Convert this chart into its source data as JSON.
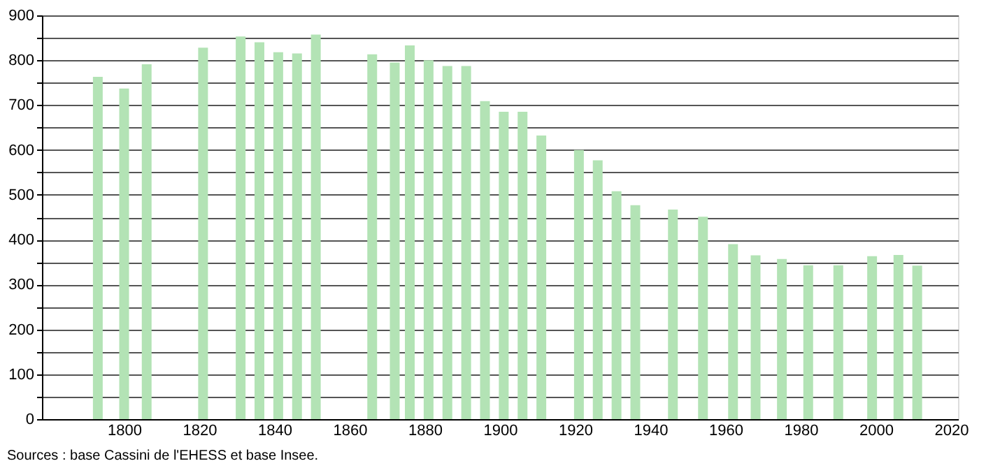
{
  "chart_data": {
    "type": "bar",
    "x": [
      1793,
      1800,
      1806,
      1821,
      1831,
      1836,
      1841,
      1846,
      1851,
      1866,
      1872,
      1876,
      1881,
      1886,
      1891,
      1896,
      1901,
      1906,
      1911,
      1921,
      1926,
      1931,
      1936,
      1946,
      1954,
      1962,
      1968,
      1975,
      1982,
      1990,
      1999,
      2006,
      2011
    ],
    "values": [
      763,
      737,
      791,
      828,
      853,
      840,
      818,
      815,
      857,
      813,
      795,
      833,
      800,
      787,
      787,
      709,
      685,
      685,
      632,
      600,
      577,
      508,
      477,
      467,
      451,
      390,
      365,
      357,
      343,
      343,
      363,
      366,
      342
    ],
    "color": "#b3e3b5",
    "xlim": [
      1780,
      2020
    ],
    "xticks": [
      1800,
      1820,
      1840,
      1860,
      1880,
      1900,
      1920,
      1940,
      1960,
      1980,
      2000,
      2020
    ],
    "ylim": [
      0,
      900
    ],
    "yticks": [
      0,
      {
        "value": 50,
        "label": null
      },
      100,
      {
        "value": 150,
        "label": null
      },
      200,
      {
        "value": 250,
        "label": null
      },
      300,
      {
        "value": 350,
        "label": null
      },
      400,
      {
        "value": 450,
        "label": null
      },
      500,
      {
        "value": 550,
        "label": null
      },
      600,
      {
        "value": 650,
        "label": null
      },
      700,
      {
        "value": 750,
        "label": null
      },
      800,
      {
        "value": 850,
        "label": null
      },
      900
    ],
    "grid": "y",
    "annotations": [
      "Sources : base Cassini de l'EHESS et base Insee."
    ]
  }
}
